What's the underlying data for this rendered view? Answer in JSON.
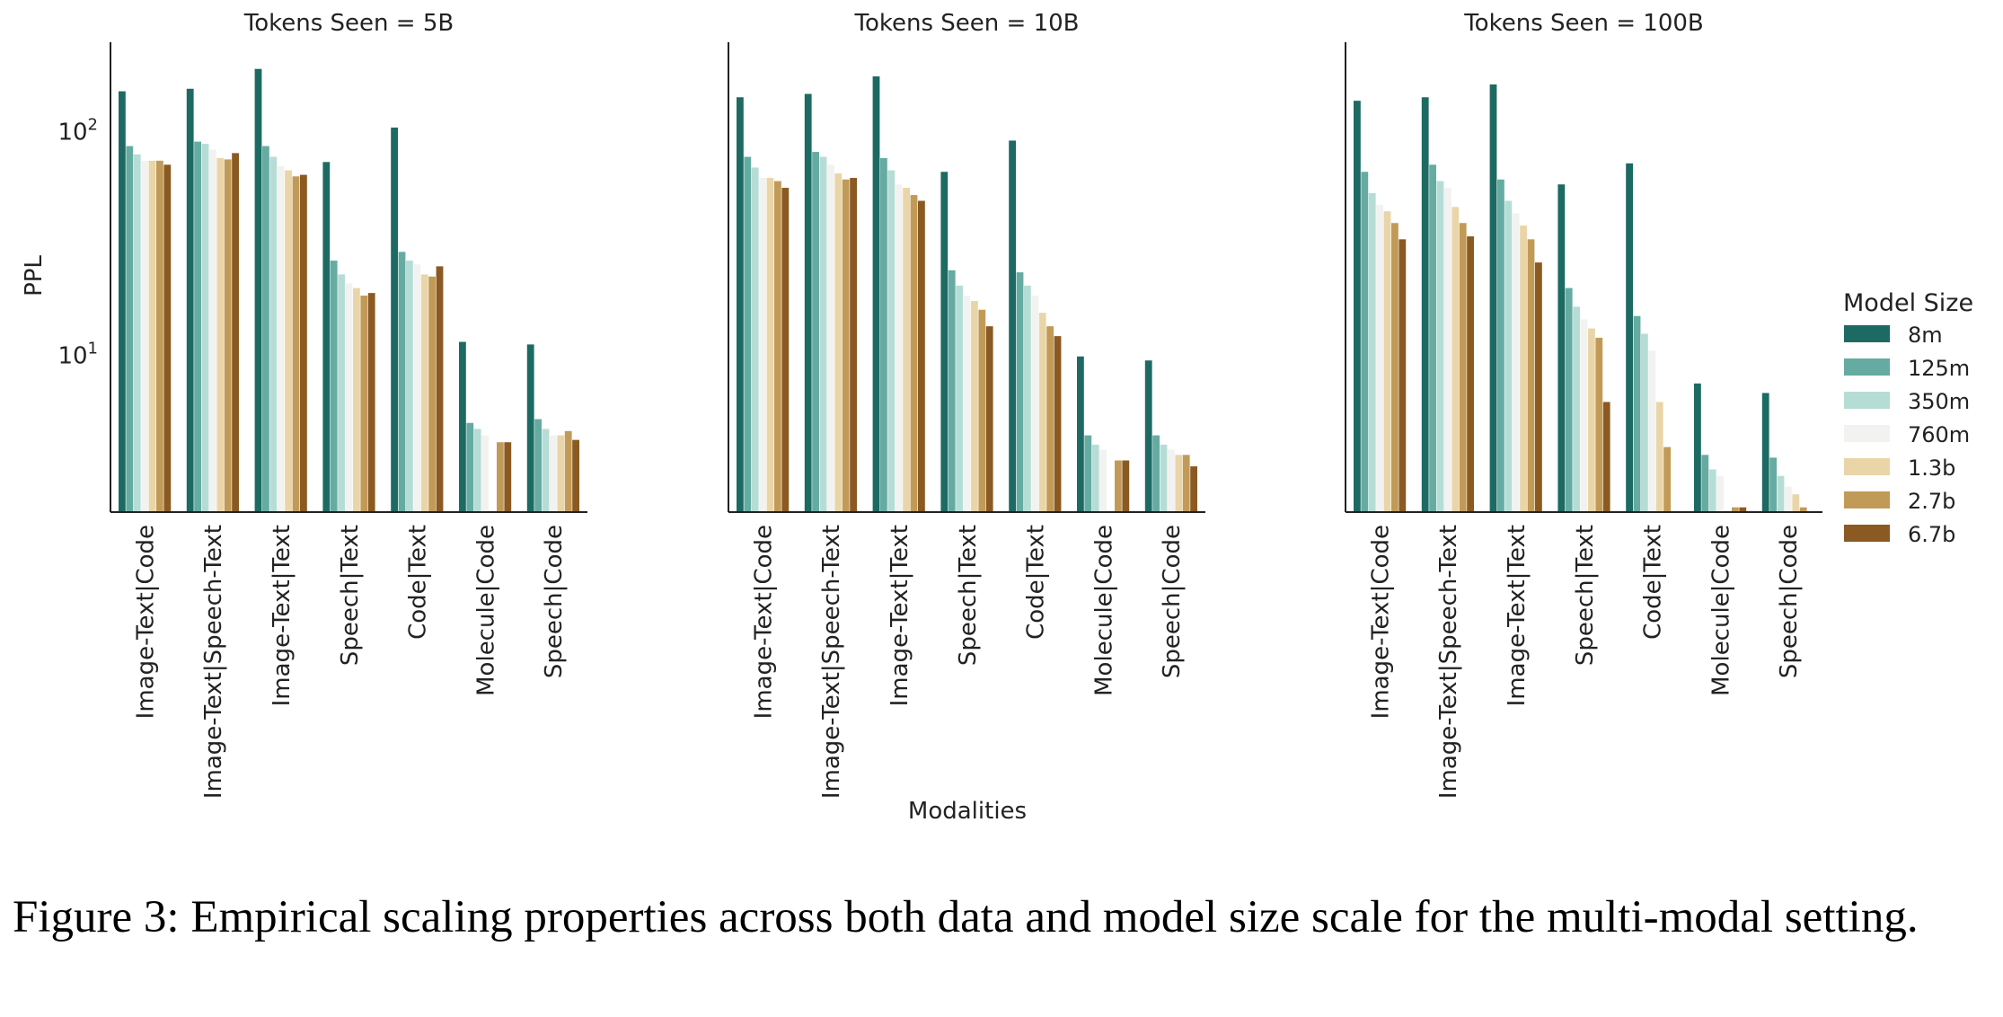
{
  "chart_data": {
    "type": "bar",
    "scale": "log",
    "ylabel": "PPL",
    "xlabel": "Modalities",
    "ylim": [
      2,
      250
    ],
    "y_ticks": [
      {
        "value": 10,
        "base": "10",
        "exp": "1"
      },
      {
        "value": 100,
        "base": "10",
        "exp": "2"
      }
    ],
    "categories": [
      "Image-Text|Code",
      "Image-Text|Speech-Text",
      "Image-Text|Text",
      "Speech|Text",
      "Code|Text",
      "Molecule|Code",
      "Speech|Code"
    ],
    "legend": {
      "title": "Model Size",
      "placement": "center-right",
      "entries": [
        {
          "name": "8m",
          "color": "#1d6a63"
        },
        {
          "name": "125m",
          "color": "#65aba2"
        },
        {
          "name": "350m",
          "color": "#b5ddd6"
        },
        {
          "name": "760m",
          "color": "#f2f2f0"
        },
        {
          "name": "1.3b",
          "color": "#e9d5a8"
        },
        {
          "name": "2.7b",
          "color": "#c29a58"
        },
        {
          "name": "6.7b",
          "color": "#8a5a22"
        }
      ]
    },
    "panels": [
      {
        "title": "Tokens Seen = 5B",
        "series": [
          {
            "name": "8m",
            "values": [
              151,
              155,
              190,
              73,
              104,
              11.5,
              11.2
            ]
          },
          {
            "name": "125m",
            "values": [
              86,
              90,
              86,
              26.5,
              29,
              5.0,
              5.2
            ]
          },
          {
            "name": "350m",
            "values": [
              79,
              88,
              77,
              23,
              26.5,
              4.7,
              4.7
            ]
          },
          {
            "name": "760m",
            "values": [
              74,
              83,
              70,
              21,
              25.5,
              4.4,
              4.4
            ]
          },
          {
            "name": "1.3b",
            "values": [
              74,
              76,
              67,
              20,
              23,
              0,
              4.4
            ]
          },
          {
            "name": "2.7b",
            "values": [
              74,
              75,
              63,
              18.5,
              22.5,
              4.1,
              4.6
            ]
          },
          {
            "name": "6.7b",
            "values": [
              71,
              80,
              64,
              19,
              25,
              4.1,
              4.2
            ]
          }
        ]
      },
      {
        "title": "Tokens Seen = 10B",
        "series": [
          {
            "name": "8m",
            "values": [
              142,
              147,
              176,
              66,
              91,
              9.9,
              9.5
            ]
          },
          {
            "name": "125m",
            "values": [
              77,
              81,
              76,
              24,
              23.5,
              4.4,
              4.4
            ]
          },
          {
            "name": "350m",
            "values": [
              69,
              77,
              67,
              20.5,
              20.5,
              4.0,
              4.0
            ]
          },
          {
            "name": "760m",
            "values": [
              62,
              71,
              58,
              18.5,
              18.5,
              3.8,
              3.8
            ]
          },
          {
            "name": "1.3b",
            "values": [
              62,
              65,
              56,
              17.5,
              15.5,
              0,
              3.6
            ]
          },
          {
            "name": "2.7b",
            "values": [
              60,
              61,
              52,
              16,
              13.5,
              3.4,
              3.6
            ]
          },
          {
            "name": "6.7b",
            "values": [
              56,
              62,
              49,
              13.5,
              12.2,
              3.4,
              3.2
            ]
          }
        ]
      },
      {
        "title": "Tokens Seen = 100B",
        "series": [
          {
            "name": "8m",
            "values": [
              137,
              142,
              162,
              58,
              72,
              7.5,
              6.8
            ]
          },
          {
            "name": "125m",
            "values": [
              66,
              71,
              61,
              20,
              15,
              3.6,
              3.5
            ]
          },
          {
            "name": "350m",
            "values": [
              53,
              60,
              49,
              16.5,
              12.5,
              3.1,
              2.9
            ]
          },
          {
            "name": "760m",
            "values": [
              47,
              56,
              43,
              14.5,
              10.5,
              2.9,
              2.6
            ]
          },
          {
            "name": "1.3b",
            "values": [
              44,
              46,
              38,
              13.2,
              6.2,
              0,
              2.4
            ]
          },
          {
            "name": "2.7b",
            "values": [
              39,
              39,
              33,
              12,
              3.9,
              2.1,
              2.1
            ]
          },
          {
            "name": "6.7b",
            "values": [
              33,
              34,
              26,
              6.2,
              1.9,
              2.1,
              1.6
            ]
          }
        ]
      }
    ]
  },
  "caption": "Figure 3: Empirical scaling properties across both data and model size scale for the multi-modal setting."
}
